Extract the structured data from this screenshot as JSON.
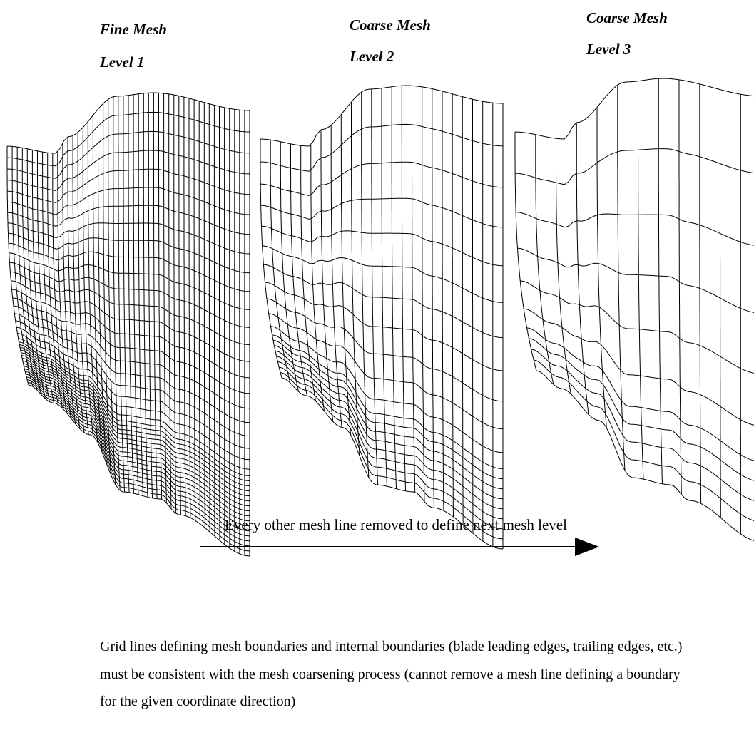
{
  "panels": [
    {
      "title": "Fine Mesh",
      "level": "Level 1"
    },
    {
      "title": "Coarse Mesh",
      "level": "Level 2"
    },
    {
      "title": "Coarse Mesh",
      "level": "Level 3"
    }
  ],
  "arrow": {
    "label": "Every other mesh line removed to define next mesh level"
  },
  "note": {
    "lines": [
      "Grid lines defining mesh boundaries and internal boundaries (blade leading edges, trailing edges, etc.)",
      "must be consistent with the mesh coarsening process (cannot remove a mesh line defining a boundary",
      "for the given coordinate direction)"
    ]
  }
}
